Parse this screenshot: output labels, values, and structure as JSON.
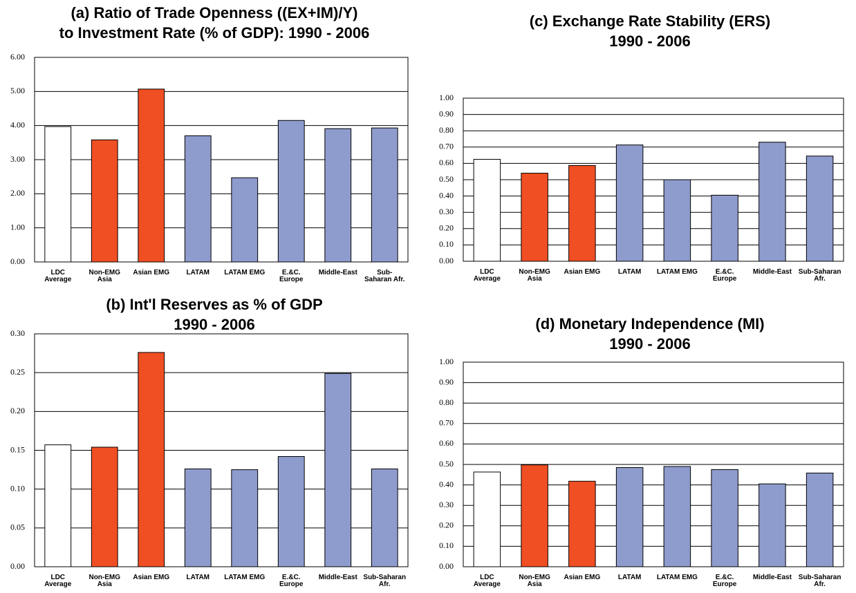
{
  "chart_data": [
    {
      "type": "bar",
      "title": [
        "(a) Ratio of Trade Openness ((EX+IM)/Y)",
        "to Investment Rate (% of GDP): 1990 - 2006"
      ],
      "categories": [
        "LDC\nAverage",
        "Non-EMG\nAsia",
        "Asian EMG",
        "LATAM",
        "LATAM EMG",
        "E.&C.\nEurope",
        "Middle-East",
        "Sub-\nSaharan Afr."
      ],
      "values": [
        3.97,
        3.58,
        5.07,
        3.7,
        2.47,
        4.15,
        3.91,
        3.93
      ],
      "colors": [
        "#ffffff",
        "#f04e23",
        "#f04e23",
        "#8e9bcd",
        "#8e9bcd",
        "#8e9bcd",
        "#8e9bcd",
        "#8e9bcd"
      ],
      "ylim": [
        0,
        6
      ],
      "yticks": [
        {
          "value": 0,
          "label": "0.00"
        },
        {
          "value": 1,
          "label": "1.00"
        },
        {
          "value": 2,
          "label": "2.00"
        },
        {
          "value": 3,
          "label": "3.00"
        },
        {
          "value": 4,
          "label": "4.00"
        },
        {
          "value": 5,
          "label": "5.00"
        },
        {
          "value": 6,
          "label": "6.00"
        }
      ],
      "grid": true
    },
    {
      "type": "bar",
      "title": [
        "(c) Exchange Rate Stability (ERS)",
        "1990 - 2006"
      ],
      "categories": [
        "LDC\nAverage",
        "Non-EMG\nAsia",
        "Asian EMG",
        "LATAM",
        "LATAM EMG",
        "E.&C.\nEurope",
        "Middle-East",
        "Sub-Saharan\nAfr."
      ],
      "values": [
        0.625,
        0.54,
        0.587,
        0.713,
        0.5,
        0.405,
        0.73,
        0.645
      ],
      "colors": [
        "#ffffff",
        "#f04e23",
        "#f04e23",
        "#8e9bcd",
        "#8e9bcd",
        "#8e9bcd",
        "#8e9bcd",
        "#8e9bcd"
      ],
      "ylim": [
        0,
        1
      ],
      "yticks": [
        {
          "value": 0,
          "label": "0.00"
        },
        {
          "value": 0.1,
          "label": "0.10"
        },
        {
          "value": 0.2,
          "label": "0.20"
        },
        {
          "value": 0.3,
          "label": "0.30"
        },
        {
          "value": 0.4,
          "label": "0.40"
        },
        {
          "value": 0.5,
          "label": "0.50"
        },
        {
          "value": 0.6,
          "label": "0.60"
        },
        {
          "value": 0.7,
          "label": "0.70"
        },
        {
          "value": 0.8,
          "label": "0.80"
        },
        {
          "value": 0.9,
          "label": "0.90"
        },
        {
          "value": 1,
          "label": "1.00"
        }
      ],
      "grid": true
    },
    {
      "type": "bar",
      "title": [
        "(b) Int'l Reserves as % of GDP",
        "1990 - 2006"
      ],
      "categories": [
        "LDC\nAverage",
        "Non-EMG\nAsia",
        "Asian EMG",
        "LATAM",
        "LATAM EMG",
        "E.&C.\nEurope",
        "Middle-East",
        "Sub-Saharan\nAfr."
      ],
      "values": [
        0.157,
        0.154,
        0.276,
        0.126,
        0.125,
        0.142,
        0.249,
        0.126
      ],
      "colors": [
        "#ffffff",
        "#f04e23",
        "#f04e23",
        "#8e9bcd",
        "#8e9bcd",
        "#8e9bcd",
        "#8e9bcd",
        "#8e9bcd"
      ],
      "ylim": [
        0,
        0.3
      ],
      "yticks": [
        {
          "value": 0,
          "label": "0.00"
        },
        {
          "value": 0.05,
          "label": "0.05"
        },
        {
          "value": 0.1,
          "label": "0.10"
        },
        {
          "value": 0.15,
          "label": "0.15"
        },
        {
          "value": 0.2,
          "label": "0.20"
        },
        {
          "value": 0.25,
          "label": "0.25"
        },
        {
          "value": 0.3,
          "label": "0.30"
        }
      ],
      "grid": true
    },
    {
      "type": "bar",
      "title": [
        "(d) Monetary Independence (MI)",
        "1990 - 2006"
      ],
      "categories": [
        "LDC\nAverage",
        "Non-EMG\nAsia",
        "Asian EMG",
        "LATAM",
        "LATAM EMG",
        "E.&C.\nEurope",
        "Middle-East",
        "Sub-Saharan\nAfr."
      ],
      "values": [
        0.463,
        0.498,
        0.418,
        0.485,
        0.49,
        0.475,
        0.405,
        0.458
      ],
      "colors": [
        "#ffffff",
        "#f04e23",
        "#f04e23",
        "#8e9bcd",
        "#8e9bcd",
        "#8e9bcd",
        "#8e9bcd",
        "#8e9bcd"
      ],
      "ylim": [
        0,
        1
      ],
      "yticks": [
        {
          "value": 0,
          "label": "0.00"
        },
        {
          "value": 0.1,
          "label": "0.10"
        },
        {
          "value": 0.2,
          "label": "0.20"
        },
        {
          "value": 0.3,
          "label": "0.30"
        },
        {
          "value": 0.4,
          "label": "0.40"
        },
        {
          "value": 0.5,
          "label": "0.50"
        },
        {
          "value": 0.6,
          "label": "0.60"
        },
        {
          "value": 0.7,
          "label": "0.70"
        },
        {
          "value": 0.8,
          "label": "0.80"
        },
        {
          "value": 0.9,
          "label": "0.90"
        },
        {
          "value": 1,
          "label": "1.00"
        }
      ],
      "grid": true
    }
  ]
}
